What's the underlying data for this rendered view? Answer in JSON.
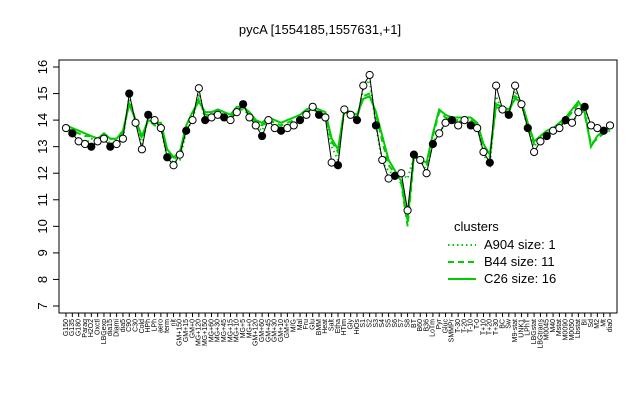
{
  "chart_data": {
    "type": "line",
    "title": "pycA [1554185,1557631,+1]",
    "xlabel": "",
    "ylabel": "",
    "ylim": [
      7,
      16
    ],
    "y_ticks": [
      7,
      8,
      9,
      10,
      11,
      12,
      13,
      14,
      15,
      16
    ],
    "categories": [
      "G150",
      "G135",
      "G180",
      "Paraq",
      "H2O2",
      "Oxctl",
      "LBGexp",
      "dia15",
      "Diami",
      "dia5",
      "C90",
      "C30",
      "Cold",
      "HPh",
      "LPh",
      "aero",
      "ferm",
      "nit",
      "GM+150",
      "GM+15",
      "GM+0",
      "MG+120",
      "MG+150",
      "MG+60",
      "MG+30",
      "MG+45",
      "MG+15",
      "MG+10",
      "MG+5",
      "MG+0",
      "GM+120",
      "GM+60",
      "GM+45",
      "GM+30",
      "GM+10",
      "GM+5",
      "M/G",
      "Mal",
      "Fru",
      "Glu",
      "BMM",
      "Heat",
      "Salt",
      "Etha",
      "HTim",
      "Gly",
      "HiOs",
      "S1",
      "S2",
      "S3",
      "S4",
      "S5",
      "S6",
      "S7",
      "S8",
      "BT",
      "B60",
      "B36",
      "LoTm",
      "Pyr",
      "Gluc",
      "SMMPr",
      "T-30",
      "T-20",
      "T-10",
      "T-0",
      "T+10",
      "T+20",
      "T+30",
      "BC",
      "Sw",
      "M9-stat",
      "UNK1",
      "LPhT",
      "LBGstat",
      "LBGtrans",
      "M0045",
      "M40",
      "Mstat",
      "M0090",
      "M0050",
      "Lbstat",
      "BI",
      "Sd",
      "M2",
      "Mt",
      "dia0"
    ],
    "tick_labels": [
      "G150",
      "G135",
      "G180",
      "Paraq",
      "H2O2",
      "Oxctl",
      "LBGexp",
      "dia15",
      "Diami",
      "dia5",
      "C90",
      "C30",
      "Cold",
      "HPh",
      "LPh",
      "aero",
      "ferm",
      "nit",
      "GM+150",
      "GM+15",
      "GM+0",
      "MG+120",
      "MG+150",
      "MG+60",
      "MG+30",
      "MG+45",
      "MG+15",
      "MG+10",
      "MG+5",
      "MG+0",
      "GM+120",
      "GM+60",
      "GM+45",
      "GM+30",
      "GM+10",
      "GM+5",
      "M/G",
      "Mal",
      "Fru",
      "Glu",
      "BMM",
      "Heat",
      "Salt",
      "Etha",
      "HTim",
      "Gly",
      "HiOs",
      "S1",
      "S2",
      "S3",
      "S4",
      "S5",
      "S6",
      "S7",
      "S8",
      "BT",
      "B60",
      "B36",
      "LoTm",
      "Pyr",
      "Gluc",
      "SMMPr",
      "T-30",
      "T-20",
      "T-10",
      "T-0",
      "T+10",
      "T+20",
      "T+30",
      "BC",
      "Sw",
      "M9-stat",
      "UNK1",
      "LPhT",
      "LBGstat",
      "LBGtrans",
      "M0045",
      "M40",
      "Mstat",
      "M0090",
      "M0050",
      "Lbstat",
      "BI",
      "Sd",
      "M2",
      "Mt",
      "dia0"
    ],
    "series": [
      {
        "name": "A904 size: 1",
        "style": "dotted",
        "color": "#00cc00",
        "values": [
          13.6,
          13.5,
          13.3,
          13.1,
          13.3,
          13.2,
          13.4,
          13.1,
          13.2,
          13.3,
          14.9,
          13.9,
          13.1,
          14.1,
          14.0,
          13.7,
          12.6,
          12.4,
          12.5,
          13.6,
          14.0,
          15.0,
          14.0,
          14.1,
          14.2,
          14.1,
          14.0,
          14.3,
          14.5,
          14.1,
          13.8,
          13.6,
          14.1,
          13.8,
          13.7,
          13.7,
          13.8,
          14.0,
          14.3,
          14.5,
          14.2,
          14.1,
          13.0,
          12.5,
          14.4,
          14.3,
          14.0,
          15.2,
          15.5,
          13.8,
          12.4,
          12.1,
          11.9,
          12.0,
          11.8,
          12.6,
          12.5,
          12.1,
          13.2,
          13.5,
          13.9,
          14.0,
          13.9,
          14.1,
          14.0,
          13.8,
          12.7,
          12.3,
          14.9,
          14.3,
          14.2,
          15.1,
          14.6,
          13.7,
          13.0,
          13.3,
          13.5,
          13.6,
          13.7,
          13.9,
          13.9,
          14.2,
          14.4,
          13.8,
          13.7,
          13.6,
          13.7
        ]
      },
      {
        "name": "B44 size: 11",
        "style": "dashed",
        "color": "#00cc00",
        "values": [
          13.7,
          13.6,
          13.5,
          13.4,
          13.4,
          13.3,
          13.5,
          13.3,
          13.3,
          13.5,
          14.7,
          14.0,
          13.3,
          14.0,
          13.8,
          13.8,
          12.8,
          12.5,
          12.7,
          13.7,
          14.2,
          14.8,
          14.2,
          14.2,
          14.3,
          14.2,
          14.1,
          14.4,
          14.4,
          14.2,
          13.9,
          13.8,
          14.0,
          13.9,
          13.8,
          13.9,
          14.0,
          14.1,
          14.3,
          14.4,
          14.3,
          14.2,
          13.2,
          12.8,
          14.3,
          14.2,
          14.1,
          14.9,
          15.0,
          14.2,
          13.2,
          12.3,
          12.0,
          11.6,
          10.0,
          12.6,
          12.4,
          12.3,
          13.4,
          14.3,
          14.1,
          14.0,
          14.0,
          14.0,
          14.0,
          13.8,
          13.0,
          12.6,
          14.5,
          14.4,
          14.3,
          14.9,
          14.7,
          13.8,
          13.1,
          13.3,
          13.5,
          13.6,
          13.8,
          14.0,
          14.3,
          14.6,
          14.2,
          13.1,
          13.3,
          13.5,
          13.6
        ]
      },
      {
        "name": "C26 size: 16",
        "style": "solid",
        "color": "#00cc00",
        "values": [
          13.8,
          13.7,
          13.6,
          13.5,
          13.4,
          13.3,
          13.5,
          13.3,
          13.3,
          13.6,
          14.6,
          14.0,
          13.4,
          14.0,
          13.9,
          13.9,
          12.9,
          12.6,
          12.8,
          13.8,
          14.3,
          14.7,
          14.3,
          14.3,
          14.4,
          14.3,
          14.2,
          14.5,
          14.5,
          14.3,
          14.0,
          13.9,
          14.1,
          14.0,
          13.9,
          14.0,
          14.1,
          14.2,
          14.4,
          14.5,
          14.4,
          14.3,
          13.3,
          12.9,
          14.4,
          14.3,
          14.2,
          14.8,
          14.9,
          14.3,
          13.4,
          12.5,
          12.1,
          11.7,
          10.2,
          12.7,
          12.5,
          12.4,
          13.5,
          14.4,
          14.2,
          14.1,
          14.1,
          14.1,
          14.1,
          13.9,
          13.1,
          12.7,
          14.6,
          14.5,
          14.4,
          14.8,
          14.7,
          13.9,
          13.2,
          13.4,
          13.6,
          13.7,
          13.9,
          14.1,
          14.4,
          14.7,
          14.3,
          13.0,
          13.4,
          13.6,
          13.7
        ]
      }
    ],
    "points": [
      13.7,
      13.5,
      13.2,
      13.1,
      13.0,
      13.2,
      13.3,
      13.0,
      13.1,
      13.3,
      15.0,
      13.9,
      12.9,
      14.2,
      14.0,
      13.7,
      12.6,
      12.3,
      12.7,
      13.6,
      14.0,
      15.2,
      14.0,
      14.1,
      14.2,
      14.1,
      14.0,
      14.3,
      14.6,
      14.1,
      13.8,
      13.4,
      14.0,
      13.7,
      13.6,
      13.7,
      13.8,
      14.0,
      14.2,
      14.5,
      14.2,
      14.1,
      12.4,
      12.3,
      14.4,
      14.2,
      14.0,
      15.3,
      15.7,
      13.8,
      12.5,
      11.8,
      11.9,
      12.0,
      10.6,
      12.7,
      12.5,
      12.0,
      13.1,
      13.5,
      13.9,
      14.0,
      13.8,
      14.0,
      13.8,
      13.7,
      12.8,
      12.4,
      15.3,
      14.4,
      14.2,
      15.3,
      14.6,
      13.7,
      12.8,
      13.2,
      13.4,
      13.6,
      13.7,
      14.0,
      13.9,
      14.3,
      14.5,
      13.8,
      13.7,
      13.6,
      13.8
    ],
    "legend": {
      "title": "clusters",
      "position": "bottom-right",
      "entries": [
        "A904 size: 1",
        "B44 size: 11",
        "C26 size: 16"
      ]
    },
    "grid": false
  }
}
